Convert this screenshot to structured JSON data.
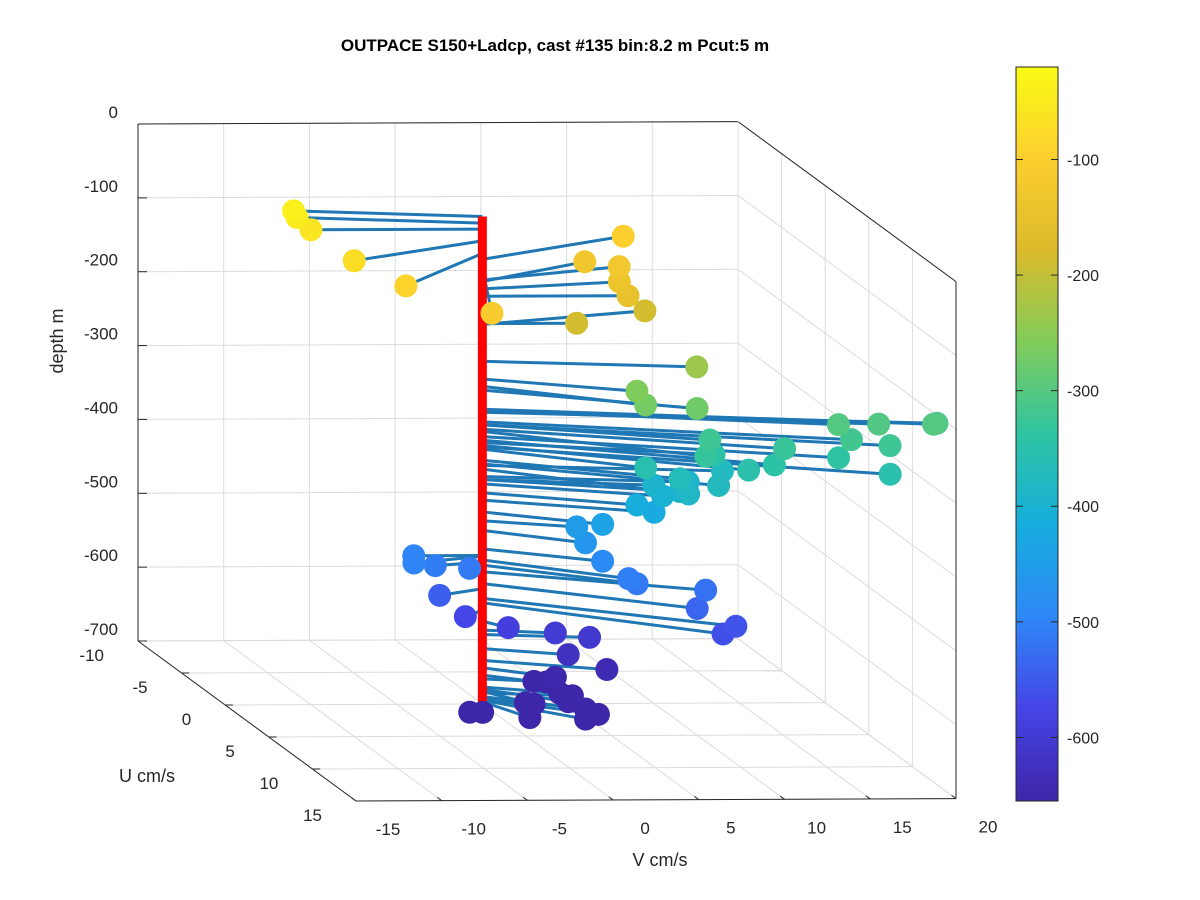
{
  "chart_data": {
    "type": "scatter",
    "title": "OUTPACE S150+Ladcp, cast #135 bin:8.2 m  Pcut:5 m",
    "xlabel": "V cm/s",
    "ylabel": "U cm/s",
    "zlabel": "depth m",
    "xlim": [
      -15,
      20
    ],
    "ylim": [
      -10,
      15
    ],
    "zlim": [
      -700,
      0
    ],
    "xticks": [
      "-15",
      "-10",
      "-5",
      "0",
      "5",
      "10",
      "15",
      "20"
    ],
    "yticks": [
      "-10",
      "-5",
      "0",
      "5",
      "10",
      "15"
    ],
    "zticks": [
      "0",
      "-100",
      "-200",
      "-300",
      "-400",
      "-500",
      "-600",
      "-700"
    ],
    "grid": true,
    "colorbar": {
      "range": [
        -655,
        -20
      ],
      "ticks": [
        "-100",
        "-200",
        "-300",
        "-400",
        "-500",
        "-600"
      ],
      "colormap": [
        "#3e26a8",
        "#4544e6",
        "#2e87f7",
        "#16adde",
        "#2ec4a2",
        "#81cc59",
        "#dbbb2b",
        "#fcce2e",
        "#f9fb15"
      ]
    },
    "colors": {
      "stem_line": "#1f77b4",
      "profile_bar": "#ff0000",
      "marker_edge": "#000000"
    },
    "points": [
      {
        "depth": -40,
        "u": -1,
        "v": -10.5
      },
      {
        "depth": -49,
        "u": -1,
        "v": -10.3
      },
      {
        "depth": -57,
        "u": 0,
        "v": -10
      },
      {
        "depth": -73,
        "u": 3,
        "v": -9
      },
      {
        "depth": -90,
        "u": 5,
        "v": -7
      },
      {
        "depth": -110,
        "u": 7,
        "v": -3
      },
      {
        "depth": -98,
        "u": -3.5,
        "v": 10
      },
      {
        "depth": -126,
        "u": -2,
        "v": 9
      },
      {
        "depth": -128,
        "u": -3,
        "v": 7.5
      },
      {
        "depth": -138,
        "u": -1,
        "v": 8.5
      },
      {
        "depth": -148,
        "u": 0,
        "v": 8.5
      },
      {
        "depth": -185,
        "u": 0,
        "v": 5.5
      },
      {
        "depth": -186,
        "u": -2,
        "v": 10.5
      },
      {
        "depth": -236,
        "u": 1,
        "v": 12
      },
      {
        "depth": -260,
        "u": 2,
        "v": 8
      },
      {
        "depth": -270,
        "u": 3,
        "v": 8
      },
      {
        "depth": -275,
        "u": 3,
        "v": 11
      },
      {
        "depth": -302,
        "u": 2.5,
        "v": 19.5
      },
      {
        "depth": -304,
        "u": 2.2,
        "v": 22
      },
      {
        "depth": -301,
        "u": 2.6,
        "v": 25
      },
      {
        "depth": -305,
        "u": 2,
        "v": 25.5
      },
      {
        "depth": -318,
        "u": 3,
        "v": 20
      },
      {
        "depth": -322,
        "u": 3.5,
        "v": 22
      },
      {
        "depth": -322,
        "u": 2.5,
        "v": 12
      },
      {
        "depth": -328,
        "u": 3.2,
        "v": 16
      },
      {
        "depth": -331,
        "u": 4,
        "v": 11
      },
      {
        "depth": -338,
        "u": 3.5,
        "v": 19
      },
      {
        "depth": -343,
        "u": 4,
        "v": 15
      },
      {
        "depth": -346,
        "u": 2,
        "v": 12.5
      },
      {
        "depth": -350,
        "u": 4,
        "v": 13.5
      },
      {
        "depth": -355,
        "u": 3,
        "v": 8
      },
      {
        "depth": -352,
        "u": 4.5,
        "v": 21.5
      },
      {
        "depth": -370,
        "u": 3,
        "v": 10
      },
      {
        "depth": -375,
        "u": 3.5,
        "v": 12
      },
      {
        "depth": -377,
        "u": 1,
        "v": 13.5
      },
      {
        "depth": -382,
        "u": 4,
        "v": 10
      },
      {
        "depth": -392,
        "u": 1,
        "v": 11.5
      },
      {
        "depth": -396,
        "u": 2,
        "v": 10.5
      },
      {
        "depth": -396,
        "u": 1,
        "v": 9.5
      },
      {
        "depth": -402,
        "u": 2,
        "v": 9.5
      },
      {
        "depth": -414,
        "u": 2,
        "v": 8
      },
      {
        "depth": -424,
        "u": 2,
        "v": 9
      },
      {
        "depth": -440,
        "u": 2,
        "v": 6
      },
      {
        "depth": -452,
        "u": 1,
        "v": 5
      },
      {
        "depth": -465,
        "u": 2,
        "v": 5
      },
      {
        "depth": -490,
        "u": 2,
        "v": 6
      },
      {
        "depth": -505,
        "u": 3,
        "v": 7
      },
      {
        "depth": -512,
        "u": 3,
        "v": 7.5
      },
      {
        "depth": -521,
        "u": 3,
        "v": 11.5
      },
      {
        "depth": -537,
        "u": 4,
        "v": 10.5
      },
      {
        "depth": -557,
        "u": 4.5,
        "v": 12.5
      },
      {
        "depth": -563,
        "u": 5,
        "v": 11.5
      },
      {
        "depth": -499,
        "u": 0,
        "v": -4
      },
      {
        "depth": -500,
        "u": 1,
        "v": -4.5
      },
      {
        "depth": -508,
        "u": 0.5,
        "v": -3
      },
      {
        "depth": -512,
        "u": 0.5,
        "v": -1
      },
      {
        "depth": -544,
        "u": 1,
        "v": -3
      },
      {
        "depth": -573,
        "u": 1,
        "v": -1.5
      },
      {
        "depth": -588,
        "u": 1,
        "v": 1
      },
      {
        "depth": -600,
        "u": 0.5,
        "v": 4
      },
      {
        "depth": -606,
        "u": 0.5,
        "v": 6
      },
      {
        "depth": -625,
        "u": 1,
        "v": 4.5
      },
      {
        "depth": -641,
        "u": 1.5,
        "v": 6.5
      },
      {
        "depth": -651,
        "u": 1.5,
        "v": 3.5
      },
      {
        "depth": -661,
        "u": 1,
        "v": 2.5
      },
      {
        "depth": -666,
        "u": 0.5,
        "v": 3.5
      },
      {
        "depth": -677,
        "u": 1,
        "v": 4
      },
      {
        "depth": -680,
        "u": 2,
        "v": 4
      },
      {
        "depth": -683,
        "u": 2,
        "v": 2
      },
      {
        "depth": -685,
        "u": 0.5,
        "v": 5
      },
      {
        "depth": -690,
        "u": 1,
        "v": 2
      },
      {
        "depth": -690,
        "u": 2,
        "v": 5
      },
      {
        "depth": -693,
        "u": 2.5,
        "v": 5.5
      },
      {
        "depth": -695,
        "u": 3,
        "v": 4.5
      },
      {
        "depth": -694,
        "u": 2,
        "v": -1
      },
      {
        "depth": -698,
        "u": 1.5,
        "v": -1.5
      },
      {
        "depth": -697,
        "u": 2.5,
        "v": 1.5
      }
    ]
  }
}
